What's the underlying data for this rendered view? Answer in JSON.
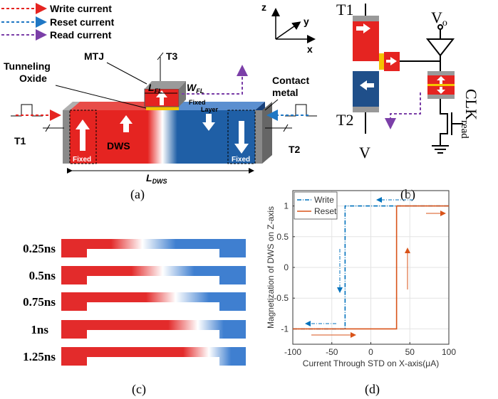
{
  "figure": {
    "panel_labels": [
      "(a)",
      "(b)",
      "(c)",
      "(d)"
    ]
  },
  "panel_a": {
    "legend": [
      "Write current",
      "Reset current",
      "Read current"
    ],
    "axes": [
      "z",
      "y",
      "x"
    ],
    "mtj": "MTJ",
    "t3": "T3",
    "oxide": [
      "Tunneling",
      "Oxide"
    ],
    "l_fl": "L",
    "l_fl_sub": "FL",
    "w_fl": "W",
    "w_fl_sub": "FL",
    "fixed_layer": [
      "Fixed",
      "Layer"
    ],
    "contact": [
      "Contact",
      "metal"
    ],
    "t1": "T1",
    "t2": "T2",
    "fixed_left": "Fixed",
    "fixed_right": "Fixed",
    "dws": "DWS",
    "l_dws": "L",
    "l_dws_sub": "DWS"
  },
  "panel_b": {
    "t1": "T1",
    "vo": "V",
    "vo_sub": "o",
    "t2": "T2",
    "v": "V",
    "clk": "CLK",
    "clk_sub": "read"
  },
  "panel_c": {
    "times": [
      "0.25ns",
      "0.5ns",
      "0.75ns",
      "1ns",
      "1.25ns"
    ]
  },
  "chart_data": {
    "type": "line",
    "x_label": "Current Through STD on X-axis(μA)",
    "y_label": "Magnetization of DWS on Z-axis",
    "series": [
      {
        "name": "Write",
        "color": "#0072bd",
        "linestyle": "dashdot",
        "x": [
          -100,
          -33,
          -33,
          100
        ],
        "values": [
          -1,
          -1,
          1,
          1
        ]
      },
      {
        "name": "Reset",
        "color": "#d95319",
        "linestyle": "solid",
        "x": [
          -100,
          33,
          33,
          100
        ],
        "values": [
          -1,
          -1,
          1,
          1
        ]
      }
    ],
    "xlim": [
      -100,
      100
    ],
    "xticks": [
      -100,
      -50,
      0,
      50,
      100
    ],
    "ylim": [
      -1.25,
      1.25
    ],
    "yticks": [
      -1,
      -0.5,
      0,
      0.5,
      1
    ],
    "grid": true,
    "legend": "upper-left"
  }
}
